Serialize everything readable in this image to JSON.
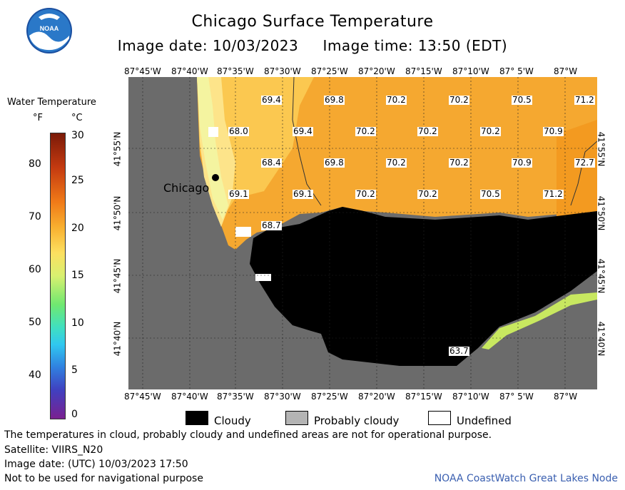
{
  "title": "Chicago Surface Temperature",
  "subtitle": "Image date: 10/03/2023     Image time: 13:50 (EDT)",
  "logo_text": "NOAA",
  "legend": {
    "title": "Water Temperature",
    "unit_f": "°F",
    "unit_c": "°C",
    "f_ticks": [
      "80",
      "70",
      "60",
      "50",
      "40"
    ],
    "c_ticks": [
      "30",
      "25",
      "20",
      "15",
      "10",
      "5",
      "0"
    ]
  },
  "axes": {
    "lon_labels": [
      "87°45'W",
      "87°40'W",
      "87°35'W",
      "87°30'W",
      "87°25'W",
      "87°20'W",
      "87°15'W",
      "87°10'W",
      "87° 5'W",
      "87°W"
    ],
    "lat_labels": [
      "41°55'N",
      "41°50'N",
      "41°45'N",
      "41°40'N"
    ]
  },
  "map": {
    "city_label": "Chicago",
    "temperatures": [
      [
        "69.4",
        "69.8",
        "70.2",
        "70.2",
        "70.5",
        "71.2"
      ],
      [
        "68.0",
        "69.4",
        "70.2",
        "70.2",
        "70.2",
        "70.9"
      ],
      [
        "68.4",
        "69.8",
        "70.2",
        "70.2",
        "70.9",
        "72.7"
      ],
      [
        "69.1",
        "69.1",
        "70.2",
        "70.2",
        "70.5",
        "71.2"
      ],
      [
        "68.7",
        "63.7"
      ]
    ],
    "colors": {
      "land": "#6b6b6b",
      "cloud": "#000000",
      "water_warm": "#f5a830",
      "water_cool": "#fdd56a",
      "shore": "#f0f070"
    }
  },
  "key": {
    "cloudy": "Cloudy",
    "probably_cloudy": "Probably cloudy",
    "undefined": "Undefined"
  },
  "footer": {
    "line1": "The temperatures in cloud, probably cloudy and undefined areas are not for operational purpose.",
    "line2": "Satellite: VIIRS_N20",
    "line3": "Image date: (UTC) 10/03/2023  17:50",
    "line4": "Not to be used for navigational purpose",
    "credit": "NOAA CoastWatch Great Lakes Node"
  }
}
